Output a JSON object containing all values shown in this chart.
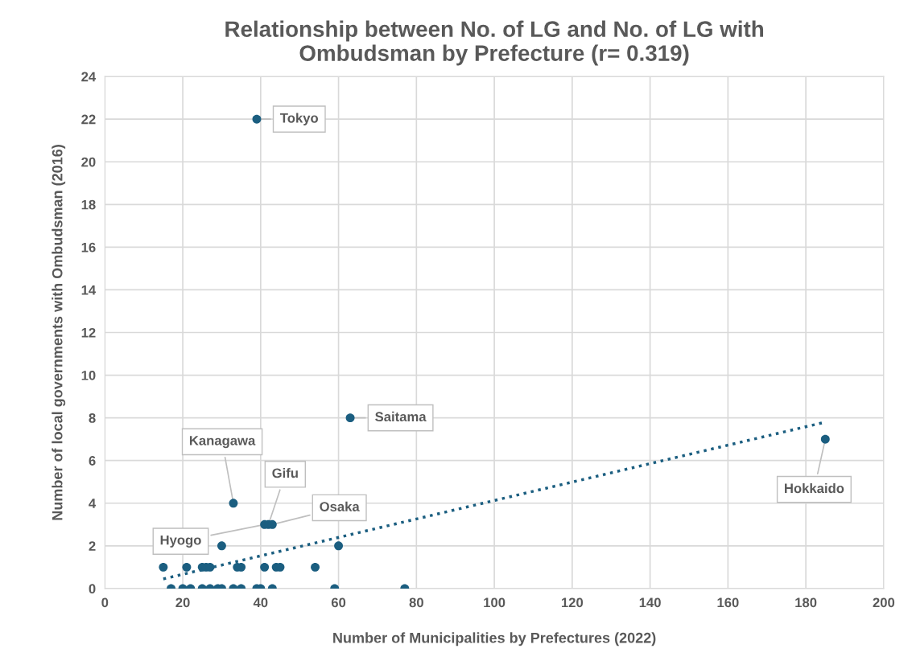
{
  "chart_data": {
    "type": "scatter",
    "title": "Relationship between No. of LG and No. of LG with\nOmbudsman by Prefecture (r= 0.319)",
    "xlabel": "Number of Municipalities by Prefectures (2022)",
    "ylabel": "Number of local governments with Ombudsman (2016)",
    "series": [
      {
        "color": "#1b5e80",
        "marker": "circle",
        "x": [
          17,
          20,
          22,
          25,
          27,
          29,
          30,
          33,
          35,
          39,
          40,
          43,
          59,
          77,
          15,
          21,
          25,
          26,
          27,
          34,
          35,
          41,
          44,
          45,
          54,
          30,
          60,
          41,
          42,
          43,
          33,
          39,
          63,
          185
        ],
        "values": [
          0,
          0,
          0,
          0,
          0,
          0,
          0,
          0,
          0,
          0,
          0,
          0,
          0,
          0,
          1,
          1,
          1,
          1,
          1,
          1,
          1,
          1,
          1,
          1,
          1,
          2,
          2,
          3,
          3,
          3,
          4,
          22,
          8,
          7
        ]
      },
      {
        "type": "line",
        "color": "#1b5e80",
        "line_style": "dotted",
        "marker": "none",
        "x": [
          15,
          185
        ],
        "values": [
          0.45,
          7.8
        ]
      }
    ],
    "annotations": [
      {
        "text": "Tokyo",
        "x": 39,
        "y": 22
      },
      {
        "text": "Saitama",
        "x": 63,
        "y": 8
      },
      {
        "text": "Hokkaido",
        "x": 185,
        "y": 7
      },
      {
        "text": "Kanagawa",
        "x": 33,
        "y": 4
      },
      {
        "text": "Gifu",
        "x": 42,
        "y": 3
      },
      {
        "text": "Osaka",
        "x": 43,
        "y": 3
      },
      {
        "text": "Hyogo",
        "x": 41,
        "y": 3
      }
    ],
    "xlim": [
      0,
      200
    ],
    "xticks": [
      0,
      20,
      40,
      60,
      80,
      100,
      120,
      140,
      160,
      180,
      200
    ],
    "ylim": [
      0,
      24
    ],
    "yticks": [
      0,
      2,
      4,
      6,
      8,
      10,
      12,
      14,
      16,
      18,
      20,
      22,
      24
    ],
    "grid": true
  }
}
